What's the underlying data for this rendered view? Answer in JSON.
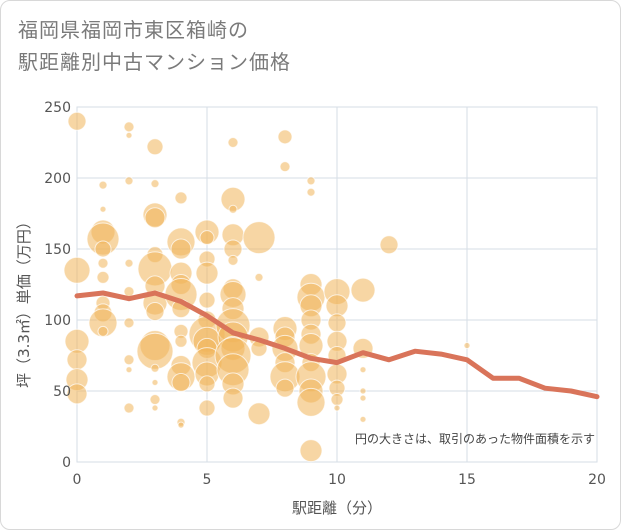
{
  "chart_data": {
    "type": "scatter",
    "title": [
      "福岡県福岡市東区箱崎の",
      "駅距離別中古マンション価格"
    ],
    "xlabel": "駅距離（分）",
    "ylabel": "坪（3.3㎡）単価（万円）",
    "xlim": [
      0,
      20
    ],
    "ylim": [
      0,
      250
    ],
    "xticks": [
      "0",
      "5",
      "10",
      "15",
      "20"
    ],
    "yticks": [
      "0",
      "50",
      "100",
      "150",
      "200",
      "250"
    ],
    "grid": true,
    "annotation": "円の大きさは、取引のあった物件面積を示す",
    "colors": {
      "bubble": "#f0b45a",
      "line": "#d9745a",
      "grid": "#d6dde6"
    },
    "trend_line": {
      "x": [
        0,
        1,
        2,
        3,
        4,
        5,
        6,
        7,
        8,
        9,
        10,
        11,
        12,
        13,
        14,
        15,
        16,
        17,
        18,
        19,
        20
      ],
      "y": [
        117,
        119,
        115,
        119,
        113,
        103,
        91,
        86,
        80,
        73,
        70,
        77,
        72,
        78,
        76,
        72,
        59,
        59,
        52,
        50,
        46
      ]
    },
    "points": [
      {
        "x": 0,
        "y": 240,
        "s": 9
      },
      {
        "x": 0,
        "y": 135,
        "s": 13
      },
      {
        "x": 0,
        "y": 85,
        "s": 12
      },
      {
        "x": 0,
        "y": 72,
        "s": 10
      },
      {
        "x": 0,
        "y": 58,
        "s": 11
      },
      {
        "x": 0,
        "y": 48,
        "s": 10
      },
      {
        "x": 1,
        "y": 195,
        "s": 4
      },
      {
        "x": 1,
        "y": 178,
        "s": 3
      },
      {
        "x": 1,
        "y": 162,
        "s": 12
      },
      {
        "x": 1,
        "y": 157,
        "s": 16
      },
      {
        "x": 1,
        "y": 150,
        "s": 8
      },
      {
        "x": 1,
        "y": 140,
        "s": 5
      },
      {
        "x": 1,
        "y": 130,
        "s": 6
      },
      {
        "x": 1,
        "y": 112,
        "s": 7
      },
      {
        "x": 1,
        "y": 105,
        "s": 9
      },
      {
        "x": 1,
        "y": 98,
        "s": 14
      },
      {
        "x": 1,
        "y": 92,
        "s": 5
      },
      {
        "x": 2,
        "y": 236,
        "s": 5
      },
      {
        "x": 2,
        "y": 230,
        "s": 3
      },
      {
        "x": 2,
        "y": 198,
        "s": 4
      },
      {
        "x": 2,
        "y": 140,
        "s": 4
      },
      {
        "x": 2,
        "y": 120,
        "s": 5
      },
      {
        "x": 2,
        "y": 98,
        "s": 5
      },
      {
        "x": 2,
        "y": 72,
        "s": 5
      },
      {
        "x": 2,
        "y": 65,
        "s": 3
      },
      {
        "x": 2,
        "y": 38,
        "s": 5
      },
      {
        "x": 3,
        "y": 222,
        "s": 8
      },
      {
        "x": 3,
        "y": 196,
        "s": 4
      },
      {
        "x": 3,
        "y": 174,
        "s": 12
      },
      {
        "x": 3,
        "y": 172,
        "s": 10
      },
      {
        "x": 3,
        "y": 146,
        "s": 8
      },
      {
        "x": 3,
        "y": 136,
        "s": 17
      },
      {
        "x": 3,
        "y": 124,
        "s": 10
      },
      {
        "x": 3,
        "y": 112,
        "s": 12
      },
      {
        "x": 3,
        "y": 106,
        "s": 9
      },
      {
        "x": 3,
        "y": 82,
        "s": 15
      },
      {
        "x": 3,
        "y": 78,
        "s": 18
      },
      {
        "x": 3,
        "y": 66,
        "s": 4
      },
      {
        "x": 3,
        "y": 56,
        "s": 3
      },
      {
        "x": 3,
        "y": 44,
        "s": 5
      },
      {
        "x": 3,
        "y": 38,
        "s": 3
      },
      {
        "x": 4,
        "y": 186,
        "s": 6
      },
      {
        "x": 4,
        "y": 155,
        "s": 14
      },
      {
        "x": 4,
        "y": 150,
        "s": 10
      },
      {
        "x": 4,
        "y": 133,
        "s": 11
      },
      {
        "x": 4,
        "y": 125,
        "s": 10
      },
      {
        "x": 4,
        "y": 118,
        "s": 16
      },
      {
        "x": 4,
        "y": 108,
        "s": 9
      },
      {
        "x": 4,
        "y": 92,
        "s": 7
      },
      {
        "x": 4,
        "y": 85,
        "s": 6
      },
      {
        "x": 4,
        "y": 68,
        "s": 10
      },
      {
        "x": 4,
        "y": 60,
        "s": 14
      },
      {
        "x": 4,
        "y": 56,
        "s": 9
      },
      {
        "x": 4,
        "y": 28,
        "s": 4
      },
      {
        "x": 4,
        "y": 26,
        "s": 3
      },
      {
        "x": 5,
        "y": 162,
        "s": 12
      },
      {
        "x": 5,
        "y": 158,
        "s": 7
      },
      {
        "x": 5,
        "y": 143,
        "s": 8
      },
      {
        "x": 5,
        "y": 133,
        "s": 11
      },
      {
        "x": 5,
        "y": 114,
        "s": 8
      },
      {
        "x": 5,
        "y": 100,
        "s": 9
      },
      {
        "x": 5,
        "y": 90,
        "s": 18
      },
      {
        "x": 5,
        "y": 85,
        "s": 14
      },
      {
        "x": 5,
        "y": 80,
        "s": 10
      },
      {
        "x": 5,
        "y": 70,
        "s": 15
      },
      {
        "x": 5,
        "y": 62,
        "s": 12
      },
      {
        "x": 5,
        "y": 55,
        "s": 8
      },
      {
        "x": 5,
        "y": 38,
        "s": 8
      },
      {
        "x": 6,
        "y": 225,
        "s": 5
      },
      {
        "x": 6,
        "y": 185,
        "s": 12
      },
      {
        "x": 6,
        "y": 178,
        "s": 4
      },
      {
        "x": 6,
        "y": 160,
        "s": 11
      },
      {
        "x": 6,
        "y": 150,
        "s": 9
      },
      {
        "x": 6,
        "y": 142,
        "s": 5
      },
      {
        "x": 6,
        "y": 122,
        "s": 10
      },
      {
        "x": 6,
        "y": 118,
        "s": 13
      },
      {
        "x": 6,
        "y": 108,
        "s": 11
      },
      {
        "x": 6,
        "y": 96,
        "s": 17
      },
      {
        "x": 6,
        "y": 88,
        "s": 15
      },
      {
        "x": 6,
        "y": 80,
        "s": 12
      },
      {
        "x": 6,
        "y": 75,
        "s": 18
      },
      {
        "x": 6,
        "y": 65,
        "s": 16
      },
      {
        "x": 6,
        "y": 55,
        "s": 11
      },
      {
        "x": 6,
        "y": 45,
        "s": 10
      },
      {
        "x": 7,
        "y": 158,
        "s": 16
      },
      {
        "x": 7,
        "y": 130,
        "s": 4
      },
      {
        "x": 7,
        "y": 88,
        "s": 10
      },
      {
        "x": 7,
        "y": 80,
        "s": 8
      },
      {
        "x": 7,
        "y": 34,
        "s": 11
      },
      {
        "x": 8,
        "y": 229,
        "s": 7
      },
      {
        "x": 8,
        "y": 208,
        "s": 5
      },
      {
        "x": 8,
        "y": 94,
        "s": 12
      },
      {
        "x": 8,
        "y": 88,
        "s": 10
      },
      {
        "x": 8,
        "y": 80,
        "s": 13
      },
      {
        "x": 8,
        "y": 70,
        "s": 10
      },
      {
        "x": 8,
        "y": 60,
        "s": 15
      },
      {
        "x": 8,
        "y": 52,
        "s": 9
      },
      {
        "x": 9,
        "y": 198,
        "s": 4
      },
      {
        "x": 9,
        "y": 190,
        "s": 4
      },
      {
        "x": 9,
        "y": 125,
        "s": 11
      },
      {
        "x": 9,
        "y": 116,
        "s": 14
      },
      {
        "x": 9,
        "y": 110,
        "s": 11
      },
      {
        "x": 9,
        "y": 100,
        "s": 10
      },
      {
        "x": 9,
        "y": 90,
        "s": 10
      },
      {
        "x": 9,
        "y": 82,
        "s": 12
      },
      {
        "x": 9,
        "y": 70,
        "s": 9
      },
      {
        "x": 9,
        "y": 60,
        "s": 15
      },
      {
        "x": 9,
        "y": 50,
        "s": 12
      },
      {
        "x": 9,
        "y": 42,
        "s": 14
      },
      {
        "x": 9,
        "y": 8,
        "s": 11
      },
      {
        "x": 10,
        "y": 120,
        "s": 13
      },
      {
        "x": 10,
        "y": 110,
        "s": 11
      },
      {
        "x": 10,
        "y": 98,
        "s": 9
      },
      {
        "x": 10,
        "y": 85,
        "s": 10
      },
      {
        "x": 10,
        "y": 75,
        "s": 9
      },
      {
        "x": 10,
        "y": 62,
        "s": 10
      },
      {
        "x": 10,
        "y": 52,
        "s": 8
      },
      {
        "x": 10,
        "y": 44,
        "s": 6
      },
      {
        "x": 10,
        "y": 38,
        "s": 3
      },
      {
        "x": 11,
        "y": 121,
        "s": 12
      },
      {
        "x": 11,
        "y": 80,
        "s": 10
      },
      {
        "x": 11,
        "y": 65,
        "s": 3
      },
      {
        "x": 11,
        "y": 50,
        "s": 3
      },
      {
        "x": 11,
        "y": 45,
        "s": 3
      },
      {
        "x": 11,
        "y": 30,
        "s": 3
      },
      {
        "x": 12,
        "y": 153,
        "s": 9
      },
      {
        "x": 15,
        "y": 82,
        "s": 3
      }
    ]
  }
}
